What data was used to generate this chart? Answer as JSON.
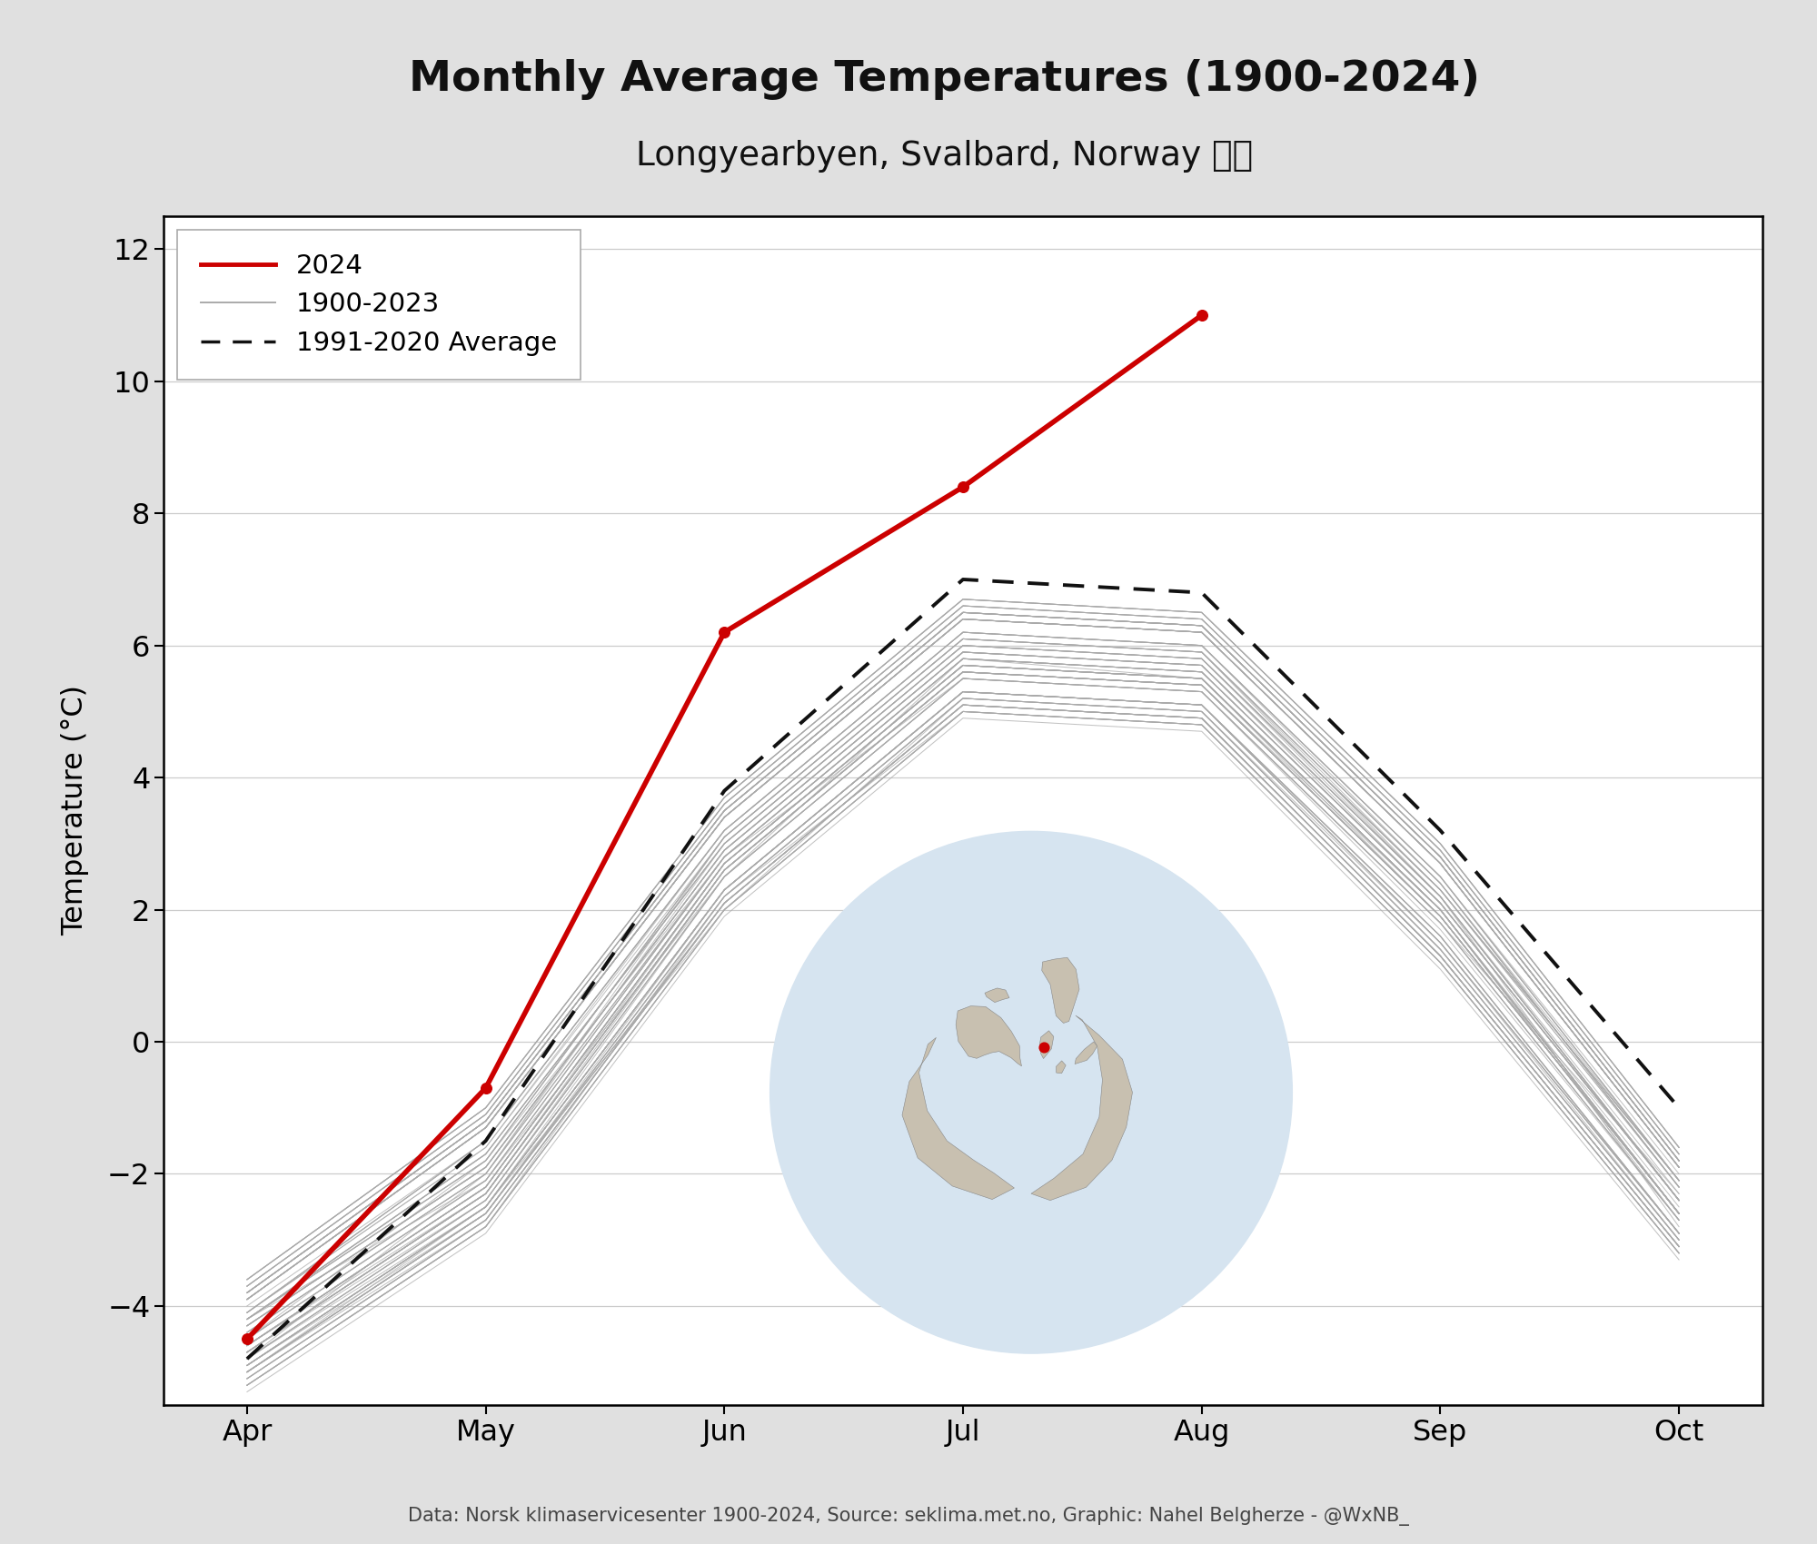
{
  "title": "Monthly Average Temperatures (1900-2024)",
  "subtitle": "Longyearbyen, Svalbard, Norway 🇳🇴",
  "ylabel": "Temperature (°C)",
  "caption": "Data: Norsk klimaservicesenter 1900-2024, Source: seklima.met.no, Graphic: Nahel Belgherze - @WxNB_",
  "months": [
    "Apr",
    "May",
    "Jun",
    "Jul",
    "Aug",
    "Sep",
    "Oct"
  ],
  "ylim": [
    -5.5,
    12.5
  ],
  "yticks": [
    -4,
    -2,
    0,
    2,
    4,
    6,
    8,
    10,
    12
  ],
  "line_2024": [
    -4.5,
    -0.7,
    6.2,
    8.4,
    11.0
  ],
  "line_2024_months": [
    0,
    1,
    2,
    3,
    4
  ],
  "avg_line": [
    -4.8,
    -1.5,
    3.8,
    7.0,
    6.8,
    3.2,
    -1.0
  ],
  "bg_color": "#e0e0e0",
  "plot_bg_color": "#ffffff",
  "line_color_2024": "#cc0000",
  "line_color_hist": "#aaaaaa",
  "line_color_avg": "#111111",
  "historical_data": [
    [
      -4.2,
      -2.1,
      2.5,
      5.8,
      5.5,
      2.0,
      -2.5
    ],
    [
      -5.0,
      -2.5,
      2.0,
      5.2,
      5.0,
      1.5,
      -3.0
    ],
    [
      -4.8,
      -2.0,
      3.0,
      6.0,
      5.8,
      2.2,
      -2.8
    ],
    [
      -4.5,
      -1.8,
      2.8,
      5.5,
      5.3,
      1.8,
      -2.3
    ],
    [
      -4.0,
      -1.5,
      3.2,
      6.2,
      6.0,
      2.5,
      -2.0
    ],
    [
      -5.2,
      -2.8,
      2.2,
      5.0,
      4.8,
      1.2,
      -3.2
    ],
    [
      -3.8,
      -1.2,
      3.5,
      6.5,
      6.3,
      2.8,
      -1.8
    ],
    [
      -4.6,
      -2.3,
      2.7,
      5.7,
      5.5,
      2.0,
      -2.7
    ],
    [
      -4.1,
      -1.6,
      3.1,
      6.1,
      5.9,
      2.3,
      -2.2
    ],
    [
      -5.1,
      -2.7,
      2.1,
      5.1,
      4.9,
      1.3,
      -3.1
    ],
    [
      -3.9,
      -1.3,
      3.4,
      6.4,
      6.2,
      2.7,
      -1.9
    ],
    [
      -4.7,
      -2.4,
      2.6,
      5.6,
      5.4,
      1.9,
      -2.6
    ],
    [
      -4.3,
      -1.9,
      2.9,
      5.9,
      5.7,
      2.1,
      -2.4
    ],
    [
      -4.9,
      -2.6,
      2.3,
      5.3,
      5.1,
      1.6,
      -2.9
    ],
    [
      -3.7,
      -1.1,
      3.6,
      6.6,
      6.4,
      2.9,
      -1.7
    ],
    [
      -4.4,
      -2.0,
      3.1,
      6.1,
      5.9,
      2.2,
      -2.3
    ],
    [
      -5.3,
      -2.9,
      1.9,
      4.9,
      4.7,
      1.1,
      -3.3
    ],
    [
      -3.6,
      -1.0,
      3.7,
      6.7,
      6.5,
      3.0,
      -1.6
    ],
    [
      -4.8,
      -2.5,
      2.5,
      5.5,
      5.3,
      1.7,
      -2.7
    ],
    [
      -4.2,
      -1.7,
      3.0,
      6.0,
      5.8,
      2.3,
      -2.2
    ],
    [
      -5.0,
      -2.6,
      2.2,
      5.2,
      5.0,
      1.4,
      -3.0
    ],
    [
      -3.8,
      -1.2,
      3.5,
      6.5,
      6.3,
      2.8,
      -1.8
    ],
    [
      -4.6,
      -2.2,
      2.7,
      5.7,
      5.5,
      1.9,
      -2.6
    ],
    [
      -4.1,
      -1.6,
      3.2,
      6.2,
      6.0,
      2.4,
      -2.1
    ],
    [
      -5.2,
      -2.8,
      2.0,
      5.0,
      4.8,
      1.2,
      -3.2
    ],
    [
      -3.9,
      -1.3,
      3.4,
      6.4,
      6.2,
      2.7,
      -1.9
    ],
    [
      -4.7,
      -2.3,
      2.6,
      5.6,
      5.4,
      2.0,
      -2.6
    ],
    [
      -4.3,
      -1.9,
      2.9,
      5.9,
      5.7,
      2.2,
      -2.4
    ],
    [
      -4.9,
      -2.5,
      2.3,
      5.3,
      5.1,
      1.5,
      -2.9
    ],
    [
      -3.7,
      -1.1,
      3.6,
      6.6,
      6.4,
      2.9,
      -1.7
    ],
    [
      -4.5,
      -2.1,
      2.8,
      5.8,
      5.6,
      2.1,
      -2.4
    ],
    [
      -5.0,
      -2.7,
      2.1,
      5.1,
      4.9,
      1.3,
      -3.1
    ],
    [
      -3.8,
      -1.2,
      3.5,
      6.5,
      6.3,
      2.8,
      -1.8
    ],
    [
      -4.6,
      -2.2,
      2.7,
      5.7,
      5.5,
      2.0,
      -2.6
    ],
    [
      -4.2,
      -1.7,
      3.0,
      6.0,
      5.8,
      2.3,
      -2.1
    ],
    [
      -5.1,
      -2.7,
      2.1,
      5.1,
      4.9,
      1.3,
      -3.1
    ],
    [
      -3.9,
      -1.3,
      3.4,
      6.4,
      6.2,
      2.7,
      -1.9
    ],
    [
      -4.7,
      -2.3,
      2.6,
      5.6,
      5.4,
      1.9,
      -2.6
    ],
    [
      -4.3,
      -1.9,
      2.9,
      5.9,
      5.7,
      2.2,
      -2.4
    ],
    [
      -4.9,
      -2.5,
      2.3,
      5.3,
      5.1,
      1.6,
      -2.9
    ],
    [
      -3.6,
      -1.0,
      3.7,
      6.7,
      6.5,
      3.0,
      -1.6
    ],
    [
      -4.8,
      -2.4,
      2.5,
      5.5,
      5.3,
      1.8,
      -2.7
    ],
    [
      -4.2,
      -1.8,
      3.1,
      6.1,
      5.9,
      2.4,
      -2.2
    ],
    [
      -5.0,
      -2.6,
      2.2,
      5.2,
      5.0,
      1.4,
      -3.0
    ],
    [
      -3.8,
      -1.2,
      3.5,
      6.5,
      6.3,
      2.8,
      -1.8
    ],
    [
      -4.6,
      -2.2,
      2.7,
      5.7,
      5.5,
      2.0,
      -2.6
    ],
    [
      -4.1,
      -1.5,
      3.2,
      6.2,
      6.0,
      2.5,
      -2.1
    ],
    [
      -5.2,
      -2.8,
      2.0,
      5.0,
      4.8,
      1.2,
      -3.2
    ],
    [
      -3.9,
      -1.3,
      3.4,
      6.4,
      6.2,
      2.7,
      -1.9
    ],
    [
      -4.7,
      -2.3,
      2.6,
      5.6,
      5.4,
      1.9,
      -2.6
    ],
    [
      -4.3,
      -1.9,
      2.9,
      5.9,
      5.7,
      2.2,
      -2.4
    ],
    [
      -4.9,
      -2.5,
      2.3,
      5.3,
      5.1,
      1.5,
      -2.9
    ],
    [
      -3.7,
      -1.1,
      3.6,
      6.6,
      6.4,
      2.9,
      -1.7
    ],
    [
      -4.5,
      -2.1,
      2.8,
      5.8,
      5.6,
      2.1,
      -2.4
    ],
    [
      -5.0,
      -2.6,
      2.1,
      5.1,
      4.9,
      1.3,
      -3.1
    ],
    [
      -3.8,
      -1.2,
      3.5,
      6.5,
      6.3,
      2.8,
      -1.8
    ],
    [
      -4.6,
      -2.2,
      2.7,
      5.7,
      5.5,
      2.0,
      -2.6
    ],
    [
      -4.2,
      -1.7,
      3.0,
      6.0,
      5.8,
      2.3,
      -2.1
    ],
    [
      -5.1,
      -2.7,
      2.1,
      5.1,
      4.9,
      1.3,
      -3.1
    ],
    [
      -3.9,
      -1.3,
      3.4,
      6.4,
      6.2,
      2.7,
      -1.9
    ],
    [
      -4.7,
      -2.3,
      2.6,
      5.6,
      5.4,
      1.9,
      -2.6
    ],
    [
      -4.4,
      -2.0,
      2.8,
      5.8,
      5.6,
      2.1,
      -2.4
    ],
    [
      -4.9,
      -2.5,
      2.3,
      5.3,
      5.1,
      1.6,
      -2.9
    ],
    [
      -3.6,
      -1.0,
      3.7,
      6.7,
      6.5,
      3.0,
      -1.6
    ],
    [
      -4.8,
      -2.4,
      2.5,
      5.5,
      5.3,
      1.8,
      -2.7
    ],
    [
      -4.2,
      -1.8,
      3.1,
      6.1,
      5.9,
      2.4,
      -2.2
    ],
    [
      -5.0,
      -2.6,
      2.2,
      5.2,
      5.0,
      1.4,
      -3.0
    ],
    [
      -3.8,
      -1.2,
      3.5,
      6.5,
      6.3,
      2.8,
      -1.8
    ],
    [
      -4.6,
      -2.2,
      2.7,
      5.7,
      5.5,
      2.0,
      -2.6
    ],
    [
      -4.1,
      -1.5,
      3.2,
      6.2,
      6.0,
      2.5,
      -2.1
    ],
    [
      -5.2,
      -2.8,
      2.0,
      5.0,
      4.8,
      1.2,
      -3.2
    ],
    [
      -3.9,
      -1.3,
      3.4,
      6.4,
      6.2,
      2.7,
      -1.9
    ],
    [
      -4.7,
      -2.3,
      2.6,
      5.6,
      5.4,
      1.9,
      -2.6
    ],
    [
      -4.3,
      -1.9,
      2.9,
      5.9,
      5.7,
      2.2,
      -2.4
    ],
    [
      -4.9,
      -2.5,
      2.3,
      5.3,
      5.1,
      1.5,
      -2.9
    ],
    [
      -3.7,
      -1.1,
      3.6,
      6.6,
      6.4,
      2.9,
      -1.7
    ],
    [
      -4.5,
      -2.1,
      2.8,
      5.8,
      5.6,
      2.1,
      -2.4
    ],
    [
      -5.0,
      -2.6,
      2.1,
      5.1,
      4.9,
      1.3,
      -3.1
    ],
    [
      -3.8,
      -1.2,
      3.5,
      6.5,
      6.3,
      2.8,
      -1.8
    ],
    [
      -4.6,
      -2.2,
      2.7,
      5.7,
      5.5,
      2.0,
      -2.6
    ],
    [
      -4.2,
      -1.7,
      3.0,
      6.0,
      5.8,
      2.3,
      -2.1
    ],
    [
      -5.1,
      -2.7,
      2.1,
      5.1,
      4.9,
      1.3,
      -3.1
    ],
    [
      -3.9,
      -1.3,
      3.4,
      6.4,
      6.2,
      2.7,
      -1.9
    ],
    [
      -4.7,
      -2.3,
      2.6,
      5.6,
      5.4,
      1.9,
      -2.6
    ],
    [
      -4.4,
      -2.0,
      2.8,
      5.8,
      5.6,
      2.1,
      -2.4
    ],
    [
      -4.9,
      -2.5,
      2.3,
      5.3,
      5.1,
      1.6,
      -2.9
    ],
    [
      -3.6,
      -1.0,
      3.7,
      6.7,
      6.5,
      3.0,
      -1.6
    ],
    [
      -4.8,
      -2.4,
      2.5,
      5.5,
      5.3,
      1.8,
      -2.7
    ],
    [
      -4.2,
      -1.8,
      3.1,
      6.1,
      5.9,
      2.4,
      -2.2
    ],
    [
      -5.0,
      -2.6,
      2.2,
      5.2,
      5.0,
      1.4,
      -3.0
    ],
    [
      -3.8,
      -1.2,
      3.5,
      6.5,
      6.3,
      2.8,
      -1.8
    ],
    [
      -4.6,
      -2.2,
      2.7,
      5.7,
      5.5,
      2.0,
      -2.6
    ],
    [
      -4.1,
      -1.5,
      3.2,
      6.2,
      6.0,
      2.5,
      -2.1
    ],
    [
      -5.2,
      -2.8,
      2.0,
      5.0,
      4.8,
      1.2,
      -3.2
    ],
    [
      -3.9,
      -1.3,
      3.4,
      6.4,
      6.2,
      2.7,
      -1.9
    ],
    [
      -4.7,
      -2.3,
      2.6,
      5.6,
      5.4,
      1.9,
      -2.6
    ],
    [
      -4.3,
      -1.9,
      2.9,
      5.9,
      5.7,
      2.2,
      -2.4
    ],
    [
      -4.9,
      -2.5,
      2.3,
      5.3,
      5.1,
      1.5,
      -2.9
    ],
    [
      -3.7,
      -1.1,
      3.6,
      6.6,
      6.4,
      2.9,
      -1.7
    ],
    [
      -4.5,
      -2.1,
      2.8,
      5.8,
      5.6,
      2.1,
      -2.4
    ],
    [
      -5.0,
      -2.6,
      2.1,
      5.1,
      4.9,
      1.3,
      -3.1
    ],
    [
      -3.8,
      -1.2,
      3.5,
      6.5,
      6.3,
      2.8,
      -1.8
    ],
    [
      -4.6,
      -2.2,
      2.7,
      5.7,
      5.5,
      2.0,
      -2.6
    ],
    [
      -4.2,
      -1.7,
      3.0,
      6.0,
      5.8,
      2.3,
      -2.1
    ],
    [
      -5.1,
      -2.7,
      2.1,
      5.1,
      4.9,
      1.3,
      -3.1
    ],
    [
      -3.9,
      -1.3,
      3.4,
      6.4,
      6.2,
      2.7,
      -1.9
    ],
    [
      -4.7,
      -2.3,
      2.6,
      5.6,
      5.4,
      1.9,
      -2.6
    ],
    [
      -4.4,
      -2.0,
      2.8,
      5.8,
      5.6,
      2.1,
      -2.4
    ],
    [
      -4.9,
      -2.5,
      2.3,
      5.3,
      5.1,
      1.6,
      -2.9
    ],
    [
      -3.6,
      -1.0,
      3.7,
      6.7,
      6.5,
      3.0,
      -1.6
    ],
    [
      -4.8,
      -2.4,
      2.5,
      5.5,
      5.3,
      1.8,
      -2.7
    ],
    [
      -4.2,
      -1.8,
      3.1,
      6.1,
      5.9,
      2.4,
      -2.2
    ],
    [
      -5.0,
      -2.6,
      2.2,
      5.2,
      5.0,
      1.4,
      -3.0
    ],
    [
      -3.8,
      -1.2,
      3.5,
      6.5,
      6.3,
      2.8,
      -1.8
    ],
    [
      -4.6,
      -2.2,
      2.7,
      5.7,
      5.5,
      2.0,
      -2.6
    ],
    [
      -4.1,
      -1.5,
      3.2,
      6.2,
      6.0,
      2.5,
      -2.1
    ],
    [
      -5.2,
      -2.8,
      2.0,
      5.0,
      4.8,
      1.2,
      -3.2
    ],
    [
      -3.9,
      -1.3,
      3.4,
      6.4,
      6.2,
      2.7,
      -1.9
    ],
    [
      -4.7,
      -2.3,
      2.6,
      5.6,
      5.4,
      1.9,
      -2.6
    ],
    [
      -4.3,
      -1.9,
      2.9,
      5.9,
      5.7,
      2.2,
      -2.4
    ],
    [
      -4.9,
      -2.5,
      2.3,
      5.3,
      5.1,
      1.5,
      -2.9
    ]
  ]
}
